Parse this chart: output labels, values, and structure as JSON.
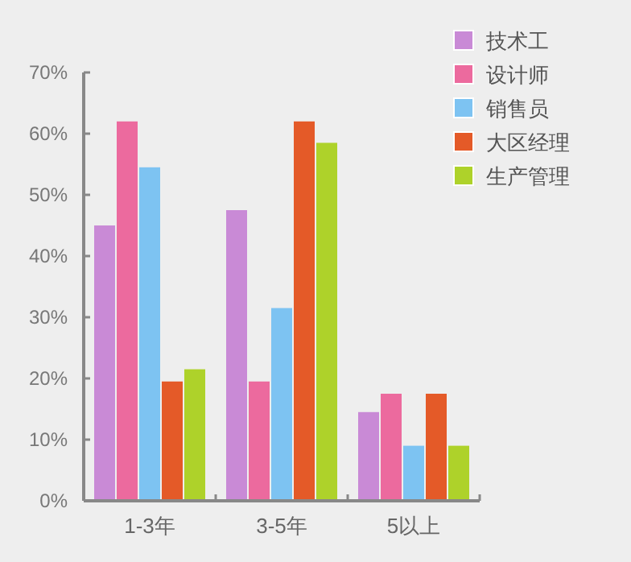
{
  "chart_data": {
    "type": "bar",
    "categories": [
      "1-3年",
      "3-5年",
      "5以上"
    ],
    "series": [
      {
        "name": "技术工",
        "color": "#c98ad6",
        "values": [
          45,
          47.5,
          14.5
        ]
      },
      {
        "name": "设计师",
        "color": "#ec6a9e",
        "values": [
          62,
          19.5,
          17.5
        ]
      },
      {
        "name": "销售员",
        "color": "#7dc3f2",
        "values": [
          54.5,
          31.5,
          9
        ]
      },
      {
        "name": "大区经理",
        "color": "#e45a28",
        "values": [
          19.5,
          62,
          17.5
        ]
      },
      {
        "name": "生产管理",
        "color": "#aed22a",
        "values": [
          21.5,
          58.5,
          9
        ]
      }
    ],
    "ylim": [
      0,
      70
    ],
    "yticks": [
      {
        "value": 0,
        "label": "0%"
      },
      {
        "value": 10,
        "label": "10%"
      },
      {
        "value": 20,
        "label": "20%"
      },
      {
        "value": 30,
        "label": "30%"
      },
      {
        "value": 40,
        "label": "40%"
      },
      {
        "value": 50,
        "label": "50%"
      },
      {
        "value": 60,
        "label": "60%"
      },
      {
        "value": 70,
        "label": "70%"
      }
    ],
    "grid": false,
    "legend": "top right"
  }
}
